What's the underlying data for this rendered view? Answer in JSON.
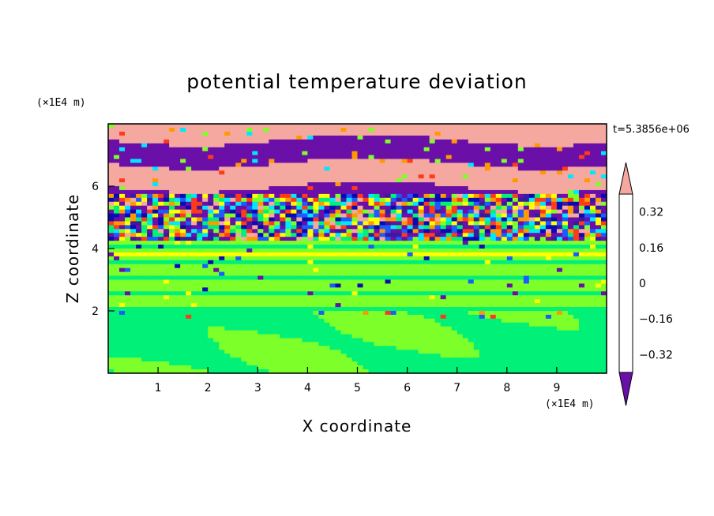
{
  "chart_data": {
    "type": "heatmap",
    "title": "potential temperature deviation",
    "xlabel": "X coordinate",
    "ylabel": "Z coordinate",
    "x_unit": "(×1E4 m)",
    "y_unit": "(×1E4 m)",
    "time_label": "t=5.3856e+06",
    "xlim": [
      0,
      10
    ],
    "ylim": [
      0,
      8
    ],
    "x_ticks": [
      "1",
      "2",
      "3",
      "4",
      "5",
      "6",
      "7",
      "8",
      "9"
    ],
    "y_ticks": [
      "2",
      "4",
      "6"
    ],
    "colorbar": {
      "levels": [
        -0.4,
        -0.32,
        -0.24,
        -0.16,
        -0.08,
        0,
        0.08,
        0.16,
        0.24,
        0.32,
        0.4
      ],
      "tick_labels": [
        "0.32",
        "0.16",
        "0",
        "−0.16",
        "−0.32"
      ],
      "colors": [
        "#6a0fa8",
        "#3a1a9e",
        "#0a0ab4",
        "#1e5aff",
        "#00e8ff",
        "#00f078",
        "#7dff2a",
        "#ffff00",
        "#ff9900",
        "#ff3a1a",
        "#f5a8a0"
      ],
      "extend": "both"
    },
    "bands": [
      {
        "z_range": [
          0,
          2.0
        ],
        "dominant": "#00f078",
        "secondary": "#7dff2a",
        "note": "light green / green mottled"
      },
      {
        "z_range": [
          2.0,
          4.2
        ],
        "dominant": "#7dff2a",
        "secondary": "#00f078",
        "note": "green horizontal stripes"
      },
      {
        "z_range": [
          4.2,
          5.8
        ],
        "dominant": "#6a0fa8",
        "secondary": "#f5a8a0",
        "note": "turbulent, all colours"
      },
      {
        "z_range": [
          5.8,
          8.0
        ],
        "dominant": "#f5a8a0",
        "secondary": "#6a0fa8",
        "note": "pink / purple layers"
      }
    ]
  }
}
